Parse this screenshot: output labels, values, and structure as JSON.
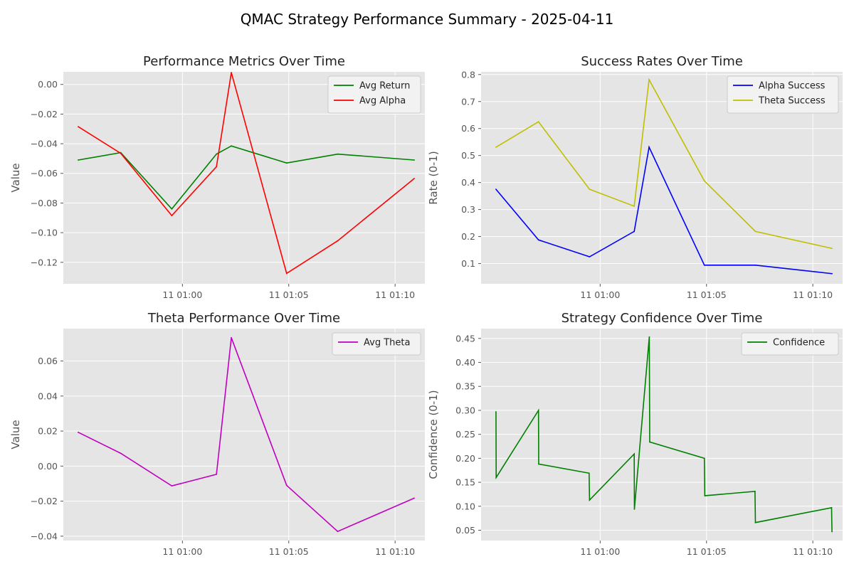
{
  "suptitle": "QMAC Strategy Performance Summary - 2025-04-11",
  "colors": {
    "panel_bg": "#E5E5E5",
    "grid": "#FFFFFF",
    "tick_text": "#555555",
    "title_text": "#222222"
  },
  "chart_data": [
    {
      "type": "line",
      "title": "Performance Metrics Over Time",
      "xlabel": "",
      "ylabel": "Value",
      "x_unit": "minutes past 2025-04-11 00:50",
      "x_ticks": [
        10,
        15,
        20
      ],
      "x_tick_labels": [
        "11 01:00",
        "11 01:05",
        "11 01:10"
      ],
      "xlim": [
        4.4,
        21.4
      ],
      "ylim": [
        -0.1345,
        0.0085
      ],
      "y_ticks": [
        -0.12,
        -0.1,
        -0.08,
        -0.06,
        -0.04,
        -0.02,
        0.0
      ],
      "y_tick_labels": [
        "−0.12",
        "−0.10",
        "−0.08",
        "−0.06",
        "−0.04",
        "−0.02",
        "0.00"
      ],
      "legend": "top-right",
      "series": [
        {
          "name": "Avg Return",
          "color": "#008000",
          "x": [
            5.1,
            7.1,
            9.5,
            11.6,
            12.3,
            14.9,
            17.3,
            20.9
          ],
          "y": [
            -0.051,
            -0.046,
            -0.084,
            -0.047,
            -0.0415,
            -0.053,
            -0.047,
            -0.051
          ]
        },
        {
          "name": "Avg Alpha",
          "color": "#FF0000",
          "x": [
            5.1,
            7.1,
            9.5,
            11.6,
            12.3,
            14.9,
            17.3,
            20.9
          ],
          "y": [
            -0.0285,
            -0.0465,
            -0.0885,
            -0.0555,
            0.008,
            -0.1275,
            -0.1055,
            -0.0635
          ]
        }
      ]
    },
    {
      "type": "line",
      "title": "Success Rates Over Time",
      "xlabel": "",
      "ylabel": "Rate (0-1)",
      "x_unit": "minutes past 2025-04-11 00:50",
      "x_ticks": [
        10,
        15,
        20
      ],
      "x_tick_labels": [
        "11 01:00",
        "11 01:05",
        "11 01:10"
      ],
      "xlim": [
        4.4,
        21.4
      ],
      "ylim": [
        0.025,
        0.81
      ],
      "y_ticks": [
        0.1,
        0.2,
        0.3,
        0.4,
        0.5,
        0.6,
        0.7,
        0.8
      ],
      "y_tick_labels": [
        "0.1",
        "0.2",
        "0.3",
        "0.4",
        "0.5",
        "0.6",
        "0.7",
        "0.8"
      ],
      "legend": "top-right",
      "series": [
        {
          "name": "Alpha Success",
          "color": "#0000FF",
          "x": [
            5.1,
            7.1,
            9.5,
            11.6,
            12.3,
            14.9,
            17.3,
            20.9
          ],
          "y": [
            0.375,
            0.1875,
            0.125,
            0.219,
            0.531,
            0.094,
            0.094,
            0.0625
          ]
        },
        {
          "name": "Theta Success",
          "color": "#BFBF00",
          "x": [
            5.1,
            7.1,
            9.5,
            11.6,
            12.3,
            14.9,
            17.3,
            20.9
          ],
          "y": [
            0.531,
            0.625,
            0.375,
            0.3125,
            0.781,
            0.406,
            0.219,
            0.156
          ]
        }
      ]
    },
    {
      "type": "line",
      "title": "Theta Performance Over Time",
      "xlabel": "",
      "ylabel": "Value",
      "x_unit": "minutes past 2025-04-11 00:50",
      "x_ticks": [
        10,
        15,
        20
      ],
      "x_tick_labels": [
        "11 01:00",
        "11 01:05",
        "11 01:10"
      ],
      "xlim": [
        4.4,
        21.4
      ],
      "ylim": [
        -0.0425,
        0.0785
      ],
      "y_ticks": [
        -0.04,
        -0.02,
        0.0,
        0.02,
        0.04,
        0.06
      ],
      "y_tick_labels": [
        "−0.04",
        "−0.02",
        "0.00",
        "0.02",
        "0.04",
        "0.06"
      ],
      "legend": "top-right",
      "series": [
        {
          "name": "Avg Theta",
          "color": "#BF00BF",
          "x": [
            5.1,
            7.1,
            9.5,
            11.6,
            12.3,
            14.9,
            17.3,
            20.9
          ],
          "y": [
            0.0193,
            0.0073,
            -0.0113,
            -0.0047,
            0.0733,
            -0.011,
            -0.0373,
            -0.0183
          ]
        }
      ]
    },
    {
      "type": "line",
      "title": "Strategy Confidence Over Time",
      "xlabel": "",
      "ylabel": "Confidence (0-1)",
      "x_unit": "minutes past 2025-04-11 00:50",
      "x_ticks": [
        10,
        15,
        20
      ],
      "x_tick_labels": [
        "11 01:00",
        "11 01:05",
        "11 01:10"
      ],
      "xlim": [
        4.4,
        21.4
      ],
      "ylim": [
        0.0285,
        0.4705
      ],
      "y_ticks": [
        0.05,
        0.1,
        0.15,
        0.2,
        0.25,
        0.3,
        0.35,
        0.4,
        0.45
      ],
      "y_tick_labels": [
        "0.05",
        "0.10",
        "0.15",
        "0.20",
        "0.25",
        "0.30",
        "0.35",
        "0.40",
        "0.45"
      ],
      "legend": "top-right",
      "series": [
        {
          "name": "Confidence",
          "color": "#008000",
          "x": [
            5.1,
            5.11,
            7.1,
            7.11,
            9.48,
            9.5,
            11.6,
            11.61,
            12.31,
            12.33,
            14.9,
            14.92,
            17.28,
            17.3,
            20.88,
            20.9
          ],
          "y": [
            0.297,
            0.16,
            0.3,
            0.188,
            0.169,
            0.113,
            0.209,
            0.094,
            0.453,
            0.234,
            0.2,
            0.122,
            0.131,
            0.066,
            0.097,
            0.047
          ]
        }
      ]
    }
  ]
}
